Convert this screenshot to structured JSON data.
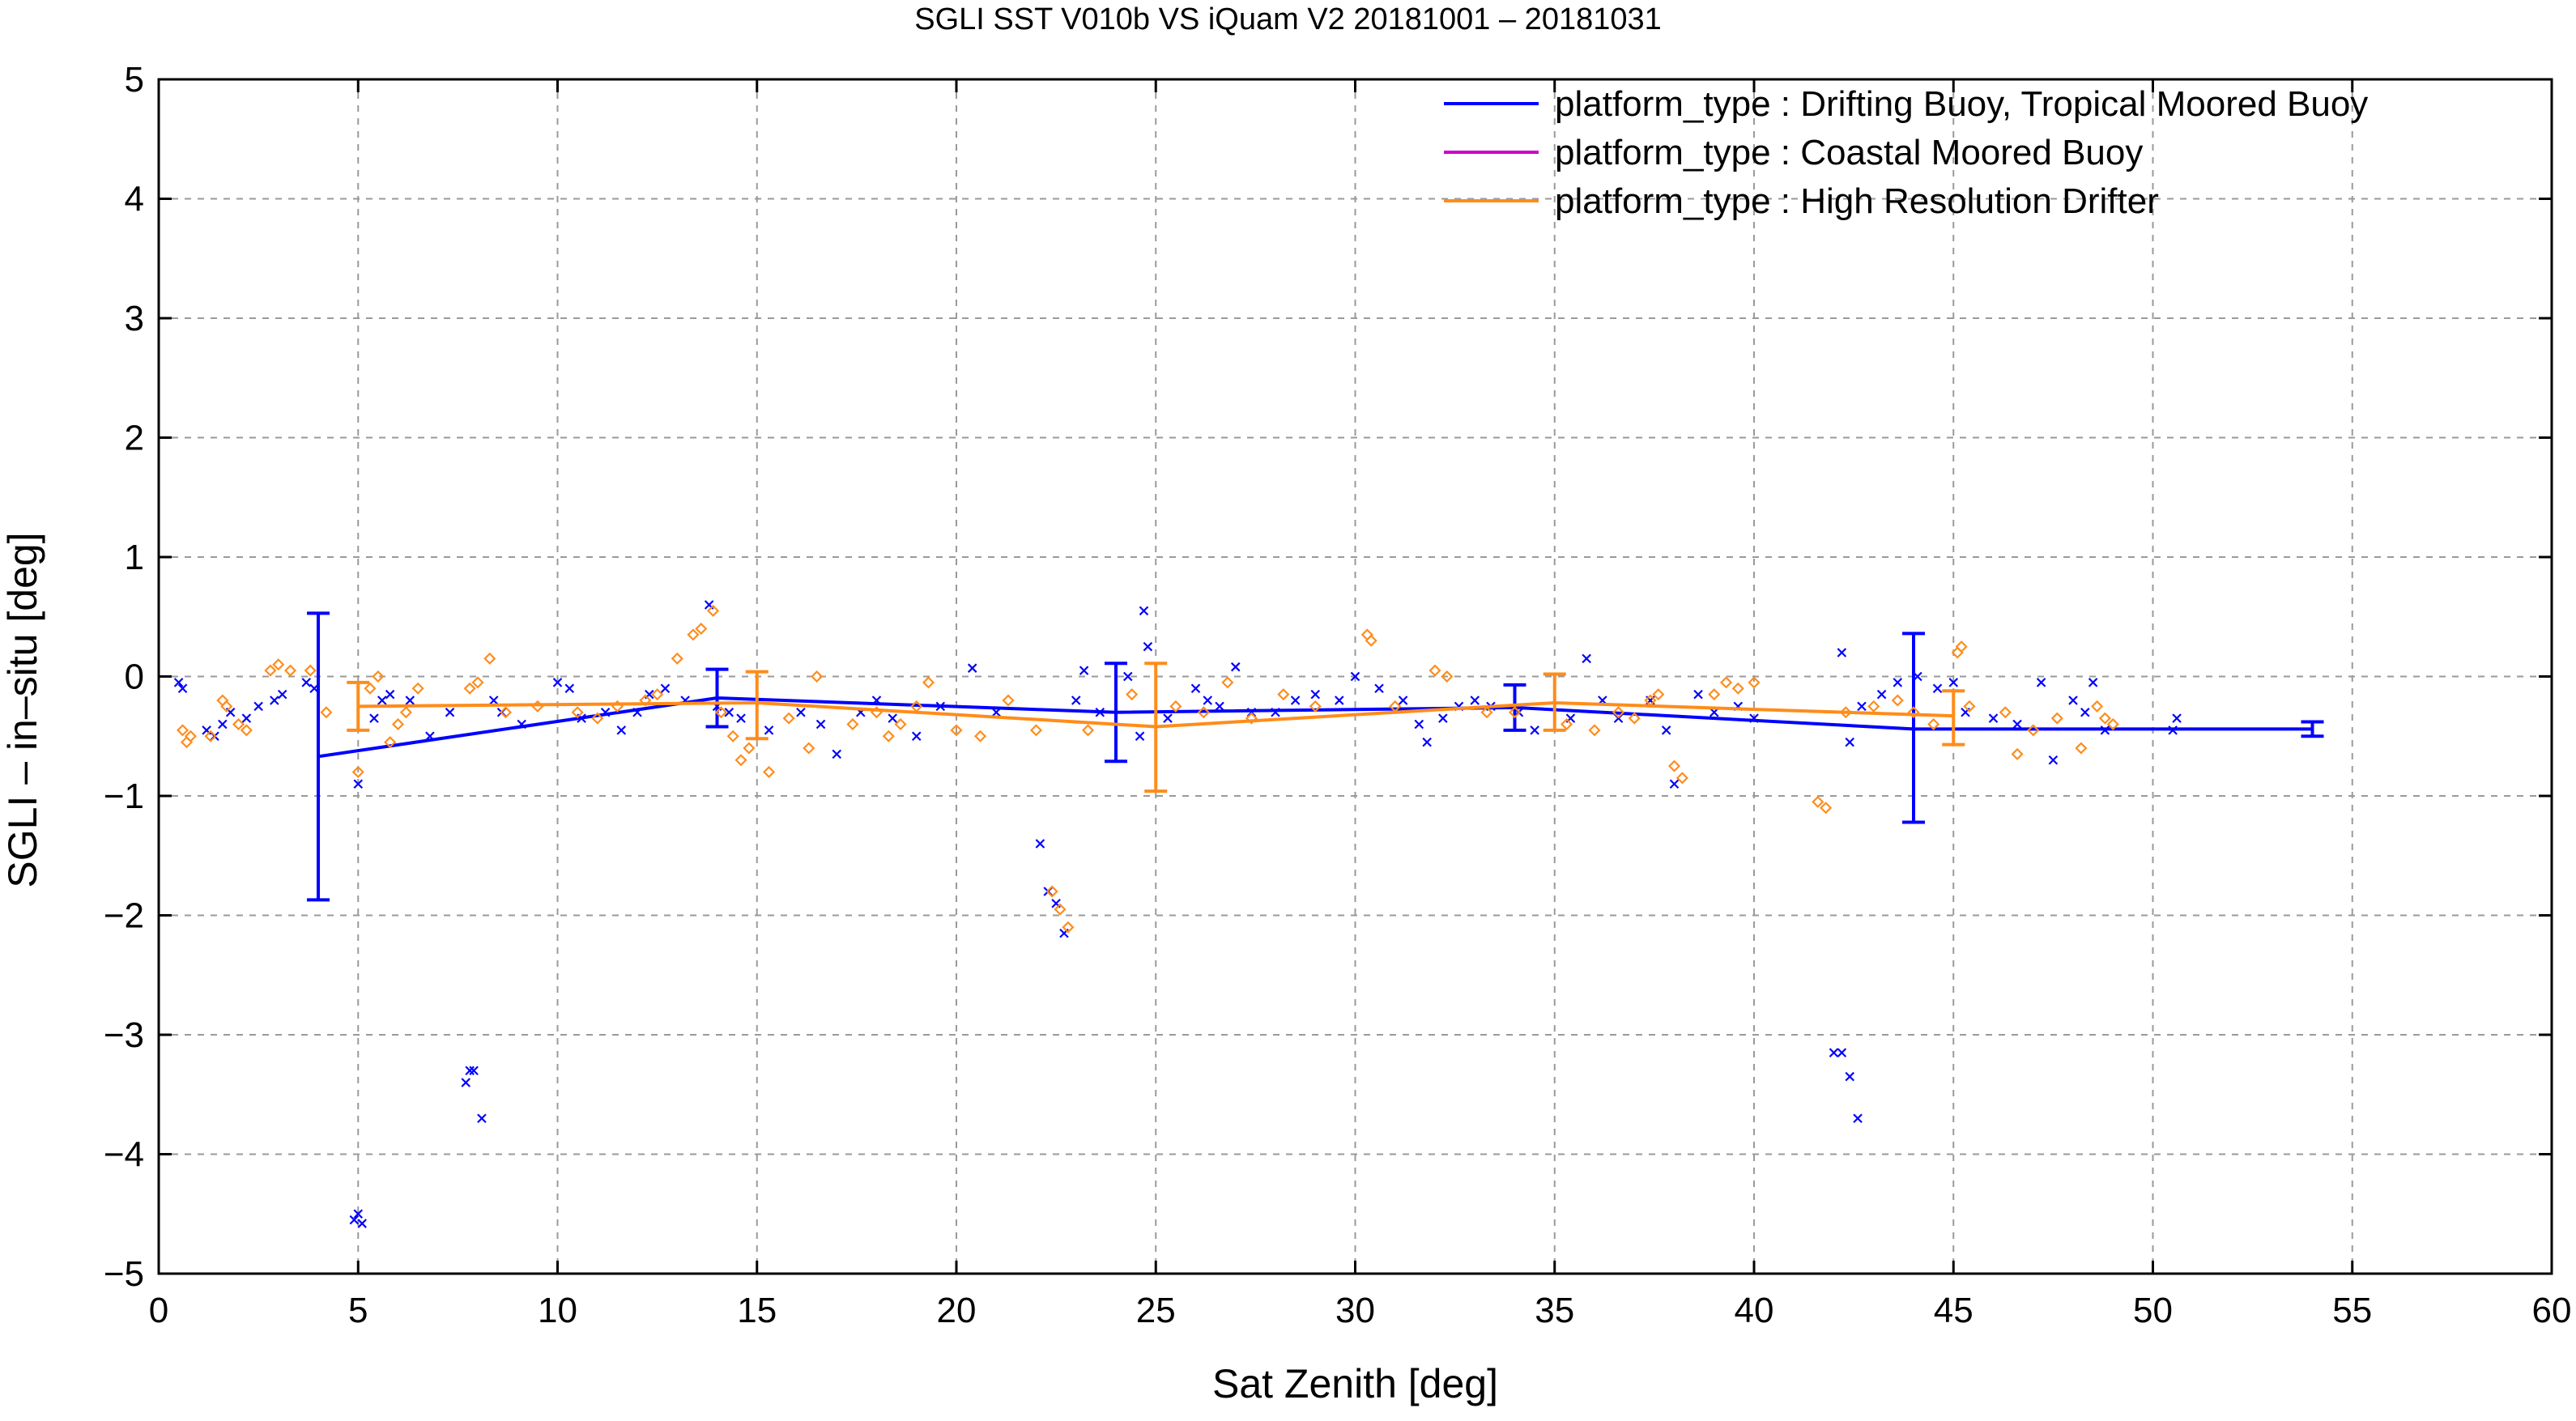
{
  "chart_data": {
    "type": "scatter",
    "title": "SGLI SST V010b VS iQuam V2 20181001 – 20181031",
    "xlabel": "Sat Zenith [deg]",
    "ylabel": "SGLI – in–situ [deg]",
    "xlim": [
      0,
      60
    ],
    "ylim": [
      -5,
      5
    ],
    "xticks": [
      0,
      5,
      10,
      15,
      20,
      25,
      30,
      35,
      40,
      45,
      50,
      55,
      60
    ],
    "yticks": [
      -5,
      -4,
      -3,
      -2,
      -1,
      0,
      1,
      2,
      3,
      4,
      5
    ],
    "ytick_labels": [
      "−5",
      "−4",
      "−3",
      "−2",
      "−1",
      "0",
      "1",
      "2",
      "3",
      "4",
      "5"
    ],
    "grid": true,
    "legend_position": "top-right",
    "series": [
      {
        "name": "platform_type : Drifting Buoy, Tropical Moored Buoy",
        "color": "#0000ff",
        "marker": "x",
        "mean_line": {
          "x": [
            4,
            14,
            24,
            34,
            44,
            54
          ],
          "y": [
            -0.67,
            -0.18,
            -0.3,
            -0.26,
            -0.44,
            -0.44
          ]
        },
        "error_bars": [
          {
            "x": 4,
            "low": -1.87,
            "high": 0.53
          },
          {
            "x": 14,
            "low": -0.42,
            "high": 0.06
          },
          {
            "x": 24,
            "low": -0.71,
            "high": 0.11
          },
          {
            "x": 34,
            "low": -0.45,
            "high": -0.07
          },
          {
            "x": 44,
            "low": -1.22,
            "high": 0.36
          },
          {
            "x": 54,
            "low": -0.5,
            "high": -0.38
          }
        ],
        "points": [
          [
            0.5,
            -0.05
          ],
          [
            0.6,
            -0.1
          ],
          [
            1.2,
            -0.45
          ],
          [
            1.4,
            -0.5
          ],
          [
            1.6,
            -0.4
          ],
          [
            1.8,
            -0.3
          ],
          [
            2.2,
            -0.35
          ],
          [
            2.5,
            -0.25
          ],
          [
            2.9,
            -0.2
          ],
          [
            3.1,
            -0.15
          ],
          [
            3.7,
            -0.05
          ],
          [
            3.9,
            -0.1
          ],
          [
            4.9,
            -4.55
          ],
          [
            5.0,
            -4.5
          ],
          [
            5.1,
            -4.58
          ],
          [
            5.0,
            -0.9
          ],
          [
            5.4,
            -0.35
          ],
          [
            5.6,
            -0.2
          ],
          [
            5.8,
            -0.15
          ],
          [
            6.3,
            -0.2
          ],
          [
            6.8,
            -0.5
          ],
          [
            7.3,
            -0.3
          ],
          [
            7.7,
            -3.4
          ],
          [
            7.8,
            -3.3
          ],
          [
            7.9,
            -3.3
          ],
          [
            8.1,
            -3.7
          ],
          [
            8.4,
            -0.2
          ],
          [
            8.6,
            -0.3
          ],
          [
            9.1,
            -0.4
          ],
          [
            10.0,
            -0.05
          ],
          [
            10.3,
            -0.1
          ],
          [
            10.6,
            -0.35
          ],
          [
            11.2,
            -0.3
          ],
          [
            11.6,
            -0.45
          ],
          [
            12.0,
            -0.3
          ],
          [
            12.3,
            -0.15
          ],
          [
            12.7,
            -0.1
          ],
          [
            13.2,
            -0.2
          ],
          [
            13.8,
            0.6
          ],
          [
            14.0,
            -0.25
          ],
          [
            14.3,
            -0.3
          ],
          [
            14.6,
            -0.35
          ],
          [
            15.3,
            -0.45
          ],
          [
            16.1,
            -0.3
          ],
          [
            16.6,
            -0.4
          ],
          [
            17.0,
            -0.65
          ],
          [
            17.6,
            -0.3
          ],
          [
            18.0,
            -0.2
          ],
          [
            18.4,
            -0.35
          ],
          [
            19.0,
            -0.5
          ],
          [
            19.6,
            -0.25
          ],
          [
            20.4,
            0.07
          ],
          [
            21.0,
            -0.3
          ],
          [
            22.1,
            -1.4
          ],
          [
            22.3,
            -1.8
          ],
          [
            22.5,
            -1.9
          ],
          [
            22.7,
            -2.15
          ],
          [
            23.0,
            -0.2
          ],
          [
            23.2,
            0.05
          ],
          [
            23.6,
            -0.3
          ],
          [
            24.3,
            0.0
          ],
          [
            24.6,
            -0.5
          ],
          [
            24.7,
            0.55
          ],
          [
            24.8,
            0.25
          ],
          [
            25.3,
            -0.35
          ],
          [
            26.0,
            -0.1
          ],
          [
            26.3,
            -0.2
          ],
          [
            26.6,
            -0.25
          ],
          [
            27.0,
            0.08
          ],
          [
            27.4,
            -0.3
          ],
          [
            28.0,
            -0.3
          ],
          [
            28.5,
            -0.2
          ],
          [
            29.0,
            -0.15
          ],
          [
            29.6,
            -0.2
          ],
          [
            30.0,
            0.0
          ],
          [
            30.6,
            -0.1
          ],
          [
            31.2,
            -0.2
          ],
          [
            31.6,
            -0.4
          ],
          [
            31.8,
            -0.55
          ],
          [
            32.2,
            -0.35
          ],
          [
            32.6,
            -0.25
          ],
          [
            33.0,
            -0.2
          ],
          [
            33.4,
            -0.25
          ],
          [
            34.1,
            -0.3
          ],
          [
            34.5,
            -0.45
          ],
          [
            35.4,
            -0.35
          ],
          [
            35.8,
            0.15
          ],
          [
            36.2,
            -0.2
          ],
          [
            36.6,
            -0.35
          ],
          [
            37.4,
            -0.2
          ],
          [
            37.8,
            -0.45
          ],
          [
            38.0,
            -0.9
          ],
          [
            38.6,
            -0.15
          ],
          [
            39.0,
            -0.3
          ],
          [
            39.6,
            -0.25
          ],
          [
            40.0,
            -0.35
          ],
          [
            42.0,
            -3.15
          ],
          [
            42.2,
            -3.15
          ],
          [
            42.4,
            -3.35
          ],
          [
            42.6,
            -3.7
          ],
          [
            42.2,
            0.2
          ],
          [
            42.4,
            -0.55
          ],
          [
            42.7,
            -0.25
          ],
          [
            43.2,
            -0.15
          ],
          [
            43.6,
            -0.05
          ],
          [
            44.1,
            0.0
          ],
          [
            44.6,
            -0.1
          ],
          [
            45.0,
            -0.05
          ],
          [
            45.3,
            -0.3
          ],
          [
            46.0,
            -0.35
          ],
          [
            46.6,
            -0.4
          ],
          [
            47.2,
            -0.05
          ],
          [
            47.5,
            -0.7
          ],
          [
            48.0,
            -0.2
          ],
          [
            48.3,
            -0.3
          ],
          [
            48.5,
            -0.05
          ],
          [
            48.8,
            -0.45
          ],
          [
            50.5,
            -0.45
          ],
          [
            50.6,
            -0.35
          ]
        ]
      },
      {
        "name": "platform_type : Coastal Moored Buoy",
        "color": "#cc00cc",
        "marker": "line",
        "points": []
      },
      {
        "name": "platform_type : High Resolution Drifter",
        "color": "#ff8c1a",
        "marker": "diamond",
        "mean_line": {
          "x": [
            5,
            15,
            25,
            35,
            45
          ],
          "y": [
            -0.25,
            -0.22,
            -0.42,
            -0.22,
            -0.33
          ]
        },
        "error_bars": [
          {
            "x": 5,
            "low": -0.45,
            "high": -0.05
          },
          {
            "x": 15,
            "low": -0.52,
            "high": 0.04
          },
          {
            "x": 25,
            "low": -0.96,
            "high": 0.11
          },
          {
            "x": 35,
            "low": -0.45,
            "high": 0.02
          },
          {
            "x": 45,
            "low": -0.57,
            "high": -0.12
          }
        ],
        "points": [
          [
            0.6,
            -0.45
          ],
          [
            0.7,
            -0.55
          ],
          [
            0.8,
            -0.5
          ],
          [
            1.3,
            -0.5
          ],
          [
            1.6,
            -0.2
          ],
          [
            1.7,
            -0.25
          ],
          [
            2.0,
            -0.4
          ],
          [
            2.2,
            -0.45
          ],
          [
            2.8,
            0.05
          ],
          [
            3.0,
            0.1
          ],
          [
            3.3,
            0.05
          ],
          [
            3.8,
            0.05
          ],
          [
            4.2,
            -0.3
          ],
          [
            5.0,
            -0.8
          ],
          [
            5.3,
            -0.1
          ],
          [
            5.5,
            0.0
          ],
          [
            5.8,
            -0.55
          ],
          [
            6.0,
            -0.4
          ],
          [
            6.2,
            -0.3
          ],
          [
            6.5,
            -0.1
          ],
          [
            7.8,
            -0.1
          ],
          [
            8.0,
            -0.05
          ],
          [
            8.3,
            0.15
          ],
          [
            8.7,
            -0.3
          ],
          [
            9.5,
            -0.25
          ],
          [
            10.5,
            -0.3
          ],
          [
            11.0,
            -0.35
          ],
          [
            11.5,
            -0.25
          ],
          [
            12.2,
            -0.2
          ],
          [
            12.5,
            -0.15
          ],
          [
            13.0,
            0.15
          ],
          [
            13.4,
            0.35
          ],
          [
            13.6,
            0.4
          ],
          [
            13.9,
            0.55
          ],
          [
            14.1,
            -0.3
          ],
          [
            14.4,
            -0.5
          ],
          [
            14.6,
            -0.7
          ],
          [
            14.8,
            -0.6
          ],
          [
            15.3,
            -0.8
          ],
          [
            15.8,
            -0.35
          ],
          [
            16.3,
            -0.6
          ],
          [
            16.5,
            0.0
          ],
          [
            17.4,
            -0.4
          ],
          [
            18.0,
            -0.3
          ],
          [
            18.3,
            -0.5
          ],
          [
            18.6,
            -0.4
          ],
          [
            19.0,
            -0.25
          ],
          [
            19.3,
            -0.05
          ],
          [
            20.0,
            -0.45
          ],
          [
            20.6,
            -0.5
          ],
          [
            21.3,
            -0.2
          ],
          [
            22.0,
            -0.45
          ],
          [
            22.4,
            -1.8
          ],
          [
            22.6,
            -1.95
          ],
          [
            22.8,
            -2.1
          ],
          [
            23.3,
            -0.45
          ],
          [
            24.4,
            -0.15
          ],
          [
            25.5,
            -0.25
          ],
          [
            26.2,
            -0.3
          ],
          [
            26.8,
            -0.05
          ],
          [
            27.4,
            -0.35
          ],
          [
            28.2,
            -0.15
          ],
          [
            29.0,
            -0.25
          ],
          [
            30.3,
            0.35
          ],
          [
            30.4,
            0.3
          ],
          [
            31.0,
            -0.25
          ],
          [
            32.0,
            0.05
          ],
          [
            32.3,
            0.0
          ],
          [
            33.3,
            -0.3
          ],
          [
            34.0,
            -0.3
          ],
          [
            35.3,
            -0.4
          ],
          [
            36.0,
            -0.45
          ],
          [
            36.6,
            -0.3
          ],
          [
            37.0,
            -0.35
          ],
          [
            37.4,
            -0.2
          ],
          [
            37.6,
            -0.15
          ],
          [
            38.0,
            -0.75
          ],
          [
            38.2,
            -0.85
          ],
          [
            39.0,
            -0.15
          ],
          [
            39.3,
            -0.05
          ],
          [
            39.6,
            -0.1
          ],
          [
            40.0,
            -0.05
          ],
          [
            41.6,
            -1.05
          ],
          [
            41.8,
            -1.1
          ],
          [
            42.3,
            -0.3
          ],
          [
            43.0,
            -0.25
          ],
          [
            43.6,
            -0.2
          ],
          [
            44.0,
            -0.3
          ],
          [
            44.5,
            -0.4
          ],
          [
            45.1,
            0.2
          ],
          [
            45.2,
            0.25
          ],
          [
            45.4,
            -0.25
          ],
          [
            46.3,
            -0.3
          ],
          [
            46.6,
            -0.65
          ],
          [
            47.0,
            -0.45
          ],
          [
            47.6,
            -0.35
          ],
          [
            48.2,
            -0.6
          ],
          [
            48.6,
            -0.25
          ],
          [
            48.8,
            -0.35
          ],
          [
            49.0,
            -0.4
          ]
        ]
      }
    ]
  }
}
